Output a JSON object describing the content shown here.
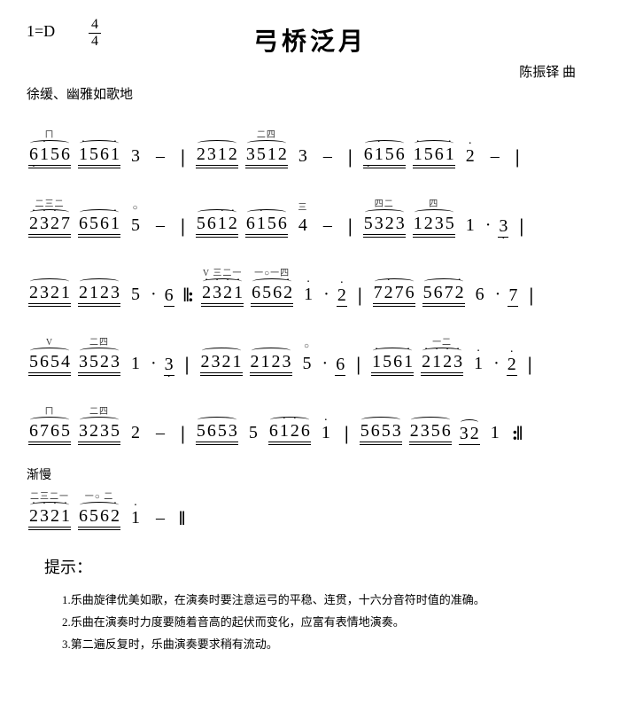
{
  "header": {
    "key": "1=D",
    "time_top": "4",
    "time_bot": "4",
    "title": "弓桥泛月",
    "composer": "陈振铎 曲",
    "tempo": "徐缓、幽雅如歌地"
  },
  "lines": [
    [
      {
        "t": "grp",
        "marks": "ㄇ",
        "notes": "6156",
        "slur": true,
        "ul": 2,
        "oct": [
          "lo",
          "hi",
          "",
          ""
        ]
      },
      {
        "t": "grp",
        "marks": "",
        "notes": "1561",
        "slur": true,
        "ul": 2,
        "oct": [
          "hi",
          "",
          "",
          "hi"
        ]
      },
      {
        "t": "plain",
        "v": "3"
      },
      {
        "t": "dash"
      },
      {
        "t": "bar"
      },
      {
        "t": "grp",
        "marks": "",
        "notes": "2312",
        "slur": true,
        "ul": 2,
        "oct": [
          "",
          "",
          "",
          ""
        ]
      },
      {
        "t": "grp",
        "marks": "二四",
        "notes": "3512",
        "slur": true,
        "ul": 2,
        "oct": [
          "",
          "",
          "",
          ""
        ]
      },
      {
        "t": "plain",
        "v": "3"
      },
      {
        "t": "dash"
      },
      {
        "t": "bar"
      },
      {
        "t": "grp",
        "marks": "",
        "notes": "6156",
        "slur": true,
        "ul": 2,
        "oct": [
          "lo",
          "hi",
          "",
          ""
        ]
      },
      {
        "t": "grp",
        "marks": "",
        "notes": "1561",
        "slur": true,
        "ul": 2,
        "oct": [
          "hi",
          "",
          "",
          "hi"
        ]
      },
      {
        "t": "plain",
        "v": "2",
        "oct": "hi"
      },
      {
        "t": "dash"
      },
      {
        "t": "bar"
      }
    ],
    [
      {
        "t": "grp",
        "marks": "二三二",
        "notes": "2327",
        "slur": true,
        "ul": 2,
        "oct": [
          "hi",
          "hi",
          "hi",
          ""
        ]
      },
      {
        "t": "grp",
        "marks": "",
        "notes": "6561",
        "slur": true,
        "ul": 2,
        "oct": [
          "",
          "",
          "",
          "hi"
        ]
      },
      {
        "t": "plain",
        "v": "5",
        "marks": "○"
      },
      {
        "t": "dash"
      },
      {
        "t": "bar"
      },
      {
        "t": "grp",
        "marks": "",
        "notes": "5612",
        "slur": true,
        "ul": 2,
        "oct": [
          "",
          "",
          "hi",
          "hi"
        ]
      },
      {
        "t": "grp",
        "marks": "",
        "notes": "6156",
        "slur": true,
        "ul": 2,
        "oct": [
          "",
          "hi",
          "",
          ""
        ]
      },
      {
        "t": "plain",
        "v": "4",
        "marks": "三"
      },
      {
        "t": "dash"
      },
      {
        "t": "bar"
      },
      {
        "t": "grp",
        "marks": "四二",
        "notes": "5323",
        "slur": true,
        "ul": 2,
        "oct": [
          "",
          "",
          "",
          ""
        ]
      },
      {
        "t": "grp",
        "marks": "四",
        "notes": "1235",
        "slur": true,
        "ul": 2,
        "oct": [
          "",
          "",
          "",
          ""
        ]
      },
      {
        "t": "plain",
        "v": "1"
      },
      {
        "t": "dot"
      },
      {
        "t": "grp",
        "notes": "3",
        "ul": 1,
        "oct": [
          "lo"
        ]
      },
      {
        "t": "bar"
      }
    ],
    [
      {
        "t": "grp",
        "marks": "",
        "notes": "2321",
        "slur": true,
        "ul": 2,
        "oct": [
          "",
          "",
          "",
          ""
        ]
      },
      {
        "t": "grp",
        "marks": "",
        "notes": "2123",
        "slur": true,
        "ul": 2,
        "oct": [
          "",
          "",
          "",
          ""
        ]
      },
      {
        "t": "plain",
        "v": "5"
      },
      {
        "t": "dot"
      },
      {
        "t": "grp",
        "notes": "6",
        "ul": 1,
        "oct": [
          ""
        ]
      },
      {
        "t": "rpt",
        "v": "‖:"
      },
      {
        "t": "grp",
        "marks": "V 三二一",
        "notes": "2321",
        "slur": true,
        "ul": 2,
        "oct": [
          "hi",
          "hi",
          "hi",
          "hi"
        ]
      },
      {
        "t": "grp",
        "marks": "一○一四",
        "notes": "6562",
        "slur": true,
        "ul": 2,
        "oct": [
          "",
          "",
          "",
          "hi"
        ]
      },
      {
        "t": "plain",
        "v": "1",
        "oct": "hi"
      },
      {
        "t": "dot"
      },
      {
        "t": "grp",
        "notes": "2",
        "ul": 1,
        "oct": [
          "hi"
        ]
      },
      {
        "t": "bar"
      },
      {
        "t": "grp",
        "marks": "",
        "notes": "7276",
        "slur": true,
        "ul": 2,
        "oct": [
          "",
          "hi",
          "",
          ""
        ]
      },
      {
        "t": "grp",
        "marks": "",
        "notes": "5672",
        "slur": true,
        "ul": 2,
        "oct": [
          "",
          "",
          "",
          "hi"
        ]
      },
      {
        "t": "plain",
        "v": "6"
      },
      {
        "t": "dot"
      },
      {
        "t": "grp",
        "notes": "7",
        "ul": 1,
        "oct": [
          ""
        ]
      },
      {
        "t": "bar"
      }
    ],
    [
      {
        "t": "grp",
        "marks": "V",
        "notes": "5654",
        "slur": true,
        "ul": 2,
        "oct": [
          "",
          "",
          "",
          ""
        ]
      },
      {
        "t": "grp",
        "marks": "二四",
        "notes": "3523",
        "slur": true,
        "ul": 2,
        "oct": [
          "",
          "",
          "",
          ""
        ]
      },
      {
        "t": "plain",
        "v": "1"
      },
      {
        "t": "dot"
      },
      {
        "t": "grp",
        "notes": "3",
        "ul": 1,
        "oct": [
          "lo"
        ]
      },
      {
        "t": "bar"
      },
      {
        "t": "grp",
        "marks": "",
        "notes": "2321",
        "slur": true,
        "ul": 2,
        "oct": [
          "",
          "",
          "",
          ""
        ]
      },
      {
        "t": "grp",
        "marks": "",
        "notes": "2123",
        "slur": true,
        "ul": 2,
        "oct": [
          "",
          "",
          "",
          ""
        ]
      },
      {
        "t": "plain",
        "v": "5",
        "marks": "○"
      },
      {
        "t": "dot"
      },
      {
        "t": "grp",
        "notes": "6",
        "ul": 1,
        "oct": [
          ""
        ]
      },
      {
        "t": "bar"
      },
      {
        "t": "grp",
        "marks": "",
        "notes": "1561",
        "slur": true,
        "ul": 2,
        "oct": [
          "hi",
          "",
          "",
          "hi"
        ]
      },
      {
        "t": "grp",
        "marks": "一二",
        "notes": "2123",
        "slur": true,
        "ul": 2,
        "oct": [
          "hi",
          "hi",
          "hi",
          "hi"
        ]
      },
      {
        "t": "plain",
        "v": "1",
        "oct": "hi"
      },
      {
        "t": "dot"
      },
      {
        "t": "grp",
        "notes": "2",
        "ul": 1,
        "oct": [
          "hi"
        ]
      },
      {
        "t": "bar"
      }
    ],
    [
      {
        "t": "grp",
        "marks": "ㄇ",
        "notes": "6765",
        "slur": true,
        "ul": 2,
        "oct": [
          "",
          "",
          "",
          ""
        ]
      },
      {
        "t": "grp",
        "marks": "二四",
        "notes": "3235",
        "slur": true,
        "ul": 2,
        "oct": [
          "",
          "",
          "",
          ""
        ]
      },
      {
        "t": "plain",
        "v": "2"
      },
      {
        "t": "dash"
      },
      {
        "t": "bar"
      },
      {
        "t": "grp",
        "marks": "",
        "notes": "5653",
        "slur": true,
        "ul": 2,
        "oct": [
          "",
          "",
          "",
          ""
        ]
      },
      {
        "t": "plain",
        "v": "5"
      },
      {
        "t": "grp",
        "marks": "",
        "notes": "6126",
        "slur": true,
        "ul": 2,
        "oct": [
          "",
          "hi",
          "hi",
          ""
        ]
      },
      {
        "t": "plain",
        "v": "1",
        "oct": "hi"
      },
      {
        "t": "bar"
      },
      {
        "t": "grp",
        "marks": "",
        "notes": "5653",
        "slur": true,
        "ul": 2,
        "oct": [
          "",
          "",
          "",
          ""
        ]
      },
      {
        "t": "grp",
        "marks": "",
        "notes": "2356",
        "slur": true,
        "ul": 2,
        "oct": [
          "",
          "",
          "",
          ""
        ]
      },
      {
        "t": "grp",
        "marks": "",
        "notes": "32",
        "slur": true,
        "ul": 1,
        "oct": [
          "",
          ""
        ]
      },
      {
        "t": "plain",
        "v": "1"
      },
      {
        "t": "rpt",
        "v": ":‖"
      }
    ],
    [
      {
        "t": "label",
        "v": "渐慢"
      },
      {
        "t": "grp",
        "marks": "二三二一",
        "notes": "2321",
        "slur": true,
        "ul": 2,
        "oct": [
          "hi",
          "hi",
          "hi",
          "hi"
        ]
      },
      {
        "t": "grp",
        "marks": "一○ 二",
        "notes": "6562",
        "slur": true,
        "ul": 2,
        "oct": [
          "",
          "",
          "",
          "hi"
        ]
      },
      {
        "t": "plain",
        "v": "1",
        "oct": "hi"
      },
      {
        "t": "dash"
      },
      {
        "t": "rpt",
        "v": "‖"
      }
    ]
  ],
  "tips": {
    "title": "提示：",
    "items": [
      "1.乐曲旋律优美如歌，在演奏时要注意运弓的平稳、连贯，十六分音符时值的准确。",
      "2.乐曲在演奏时力度要随着音高的起伏而变化，应富有表情地演奏。",
      "3.第二遍反复时，乐曲演奏要求稍有流动。"
    ]
  }
}
